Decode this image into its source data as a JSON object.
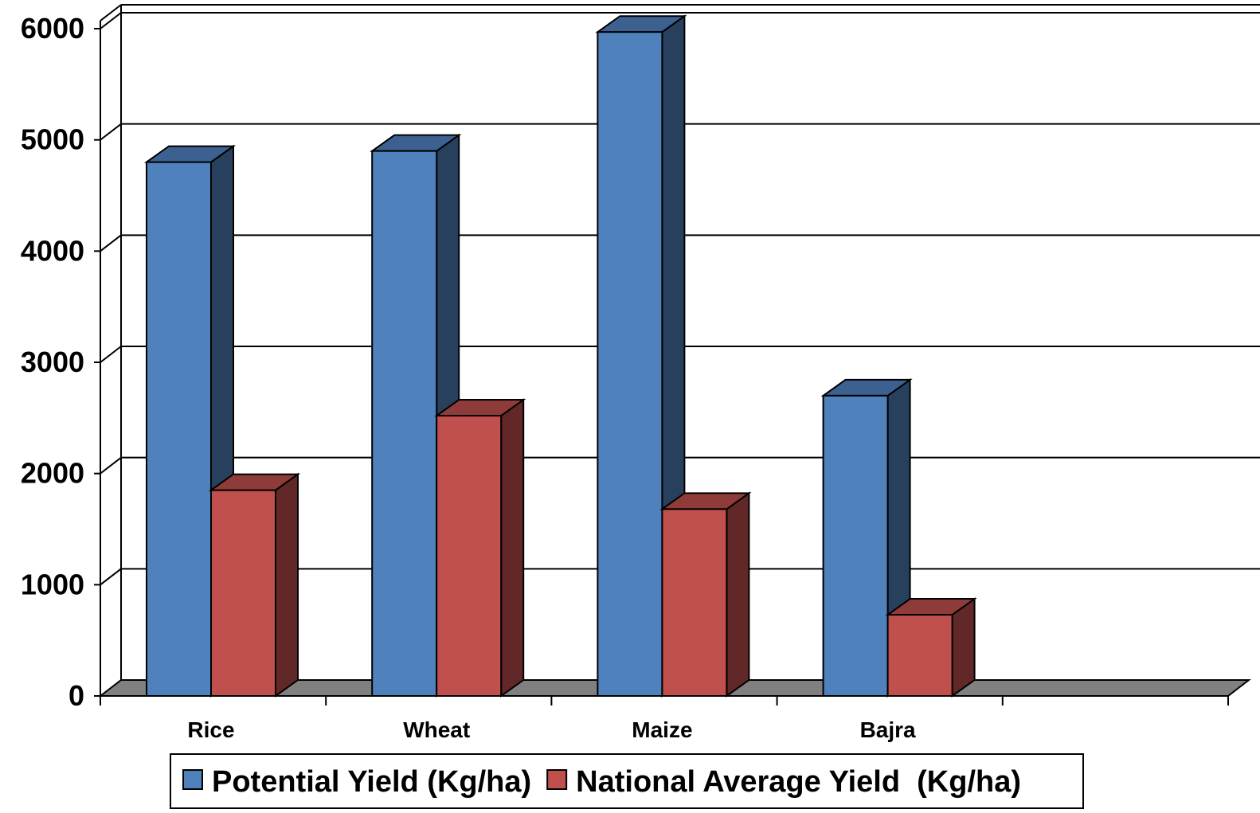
{
  "chart_data": {
    "type": "bar",
    "categories": [
      "Rice",
      "Wheat",
      "Maize",
      "Bajra"
    ],
    "series": [
      {
        "name": "Potential Yield (Kg/ha)",
        "values": [
          4800,
          4900,
          5970,
          2700
        ],
        "color": "#4F81BD",
        "side_color": "#27405E",
        "top_color": "#3C6190"
      },
      {
        "name": "National Average Yield  (Kg/ha)",
        "values": [
          1850,
          2520,
          1680,
          730
        ],
        "color": "#C0504D",
        "side_color": "#622828",
        "top_color": "#8F3B39"
      }
    ],
    "y_ticks": [
      "0",
      "1000",
      "2000",
      "3000",
      "4000",
      "5000",
      "6000"
    ],
    "ylim": [
      0,
      6000
    ],
    "grid": true,
    "legend": "bottom",
    "floor_color": "#808080",
    "grid_color": "#000000"
  }
}
